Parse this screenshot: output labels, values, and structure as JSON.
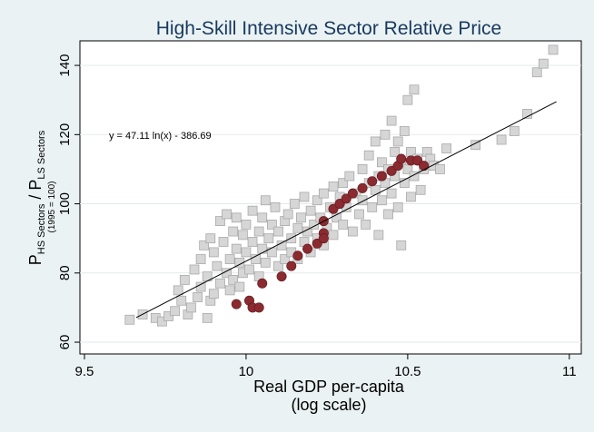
{
  "chart_data": {
    "type": "scatter",
    "title": "High-Skill Intensive Sector Relative Price",
    "x_label": [
      "Real GDP per-capita",
      "(log scale)"
    ],
    "y_label": {
      "p1": "P",
      "sub1": "HS Sectors",
      "slash": " / P",
      "sub2": "LS Sectors",
      "note": "(1995 = 100)"
    },
    "annotation": "y = 47.11 ln(x) - 386.69",
    "xlim": [
      9.486,
      11.037
    ],
    "xticks": [
      9.5,
      10,
      10.5,
      11
    ],
    "ylim": [
      56.6,
      147.1
    ],
    "yticks": [
      60,
      80,
      100,
      120,
      140
    ],
    "grid": true,
    "series": [
      {
        "marker": "square",
        "color": "#d6d6d6",
        "x": [
          9.64,
          9.68,
          9.72,
          9.74,
          9.76,
          9.78,
          9.79,
          9.8,
          9.81,
          9.82,
          9.83,
          9.84,
          9.85,
          9.86,
          9.86,
          9.87,
          9.88,
          9.88,
          9.89,
          9.89,
          9.9,
          9.9,
          9.91,
          9.92,
          9.92,
          9.93,
          9.94,
          9.94,
          9.95,
          9.95,
          9.96,
          9.96,
          9.97,
          9.97,
          9.98,
          9.98,
          9.99,
          9.99,
          10.0,
          10.0,
          10.01,
          10.02,
          10.02,
          10.03,
          10.04,
          10.04,
          10.05,
          10.05,
          10.06,
          10.06,
          10.07,
          10.08,
          10.08,
          10.09,
          10.1,
          10.1,
          10.11,
          10.12,
          10.12,
          10.13,
          10.14,
          10.14,
          10.15,
          10.16,
          10.16,
          10.17,
          10.18,
          10.18,
          10.19,
          10.2,
          10.2,
          10.21,
          10.22,
          10.22,
          10.23,
          10.24,
          10.24,
          10.25,
          10.26,
          10.27,
          10.27,
          10.28,
          10.29,
          10.3,
          10.3,
          10.31,
          10.32,
          10.33,
          10.34,
          10.35,
          10.36,
          10.36,
          10.37,
          10.38,
          10.38,
          10.39,
          10.4,
          10.4,
          10.41,
          10.41,
          10.42,
          10.42,
          10.43,
          10.43,
          10.44,
          10.44,
          10.45,
          10.45,
          10.46,
          10.46,
          10.47,
          10.47,
          10.48,
          10.48,
          10.49,
          10.49,
          10.5,
          10.5,
          10.51,
          10.51,
          10.52,
          10.52,
          10.53,
          10.54,
          10.55,
          10.56,
          10.57,
          10.58,
          10.6,
          10.62,
          10.71,
          10.79,
          10.83,
          10.87,
          10.9,
          10.92,
          10.95
        ],
        "values": [
          66.5,
          68,
          67,
          66,
          67.5,
          69,
          75,
          72,
          78,
          68,
          70,
          81,
          73,
          76,
          84,
          88,
          67,
          79,
          90,
          72,
          86,
          74,
          82,
          77,
          95,
          89,
          80,
          97,
          84,
          75,
          92,
          78,
          87,
          96,
          83,
          76,
          91,
          80,
          86,
          94,
          81,
          98,
          89,
          84,
          92,
          79,
          96,
          87,
          101,
          83,
          90,
          94,
          86,
          99,
          82,
          92,
          88,
          95,
          84,
          97,
          90,
          86,
          100,
          93,
          84,
          96,
          89,
          102,
          92,
          86,
          98,
          94,
          90,
          101,
          96,
          88,
          103,
          93,
          99,
          91,
          105,
          96,
          102,
          94,
          106,
          99,
          108,
          92,
          103,
          97,
          110,
          101,
          94,
          106,
          114,
          99,
          104,
          118,
          108,
          91,
          101,
          112,
          120,
          106,
          97,
          110,
          124,
          103,
          115,
          108,
          99,
          118,
          112,
          88,
          106,
          121,
          130,
          110,
          115,
          102,
          133,
          108,
          113,
          104,
          110,
          115,
          113,
          111,
          110,
          116,
          117,
          118.5,
          121,
          126,
          138,
          140.5,
          144.5
        ]
      },
      {
        "marker": "circle",
        "color": "#8b2a30",
        "x": [
          9.97,
          10.01,
          10.02,
          10.04,
          10.05,
          10.11,
          10.14,
          10.16,
          10.19,
          10.22,
          10.24,
          10.24,
          10.24,
          10.27,
          10.29,
          10.31,
          10.33,
          10.36,
          10.39,
          10.42,
          10.45,
          10.47,
          10.48,
          10.51,
          10.53,
          10.55
        ],
        "values": [
          71,
          72,
          70,
          70,
          77,
          79,
          82,
          85,
          87,
          88.5,
          91.5,
          90,
          95,
          98.5,
          100,
          101.5,
          103,
          104.5,
          106.5,
          108,
          109.5,
          111,
          113,
          112.5,
          112.5,
          111
        ]
      },
      {
        "marker": "line",
        "color": "#000000",
        "x": [
          9.66,
          10.96
        ],
        "values": [
          67.1,
          129.5
        ]
      }
    ]
  }
}
